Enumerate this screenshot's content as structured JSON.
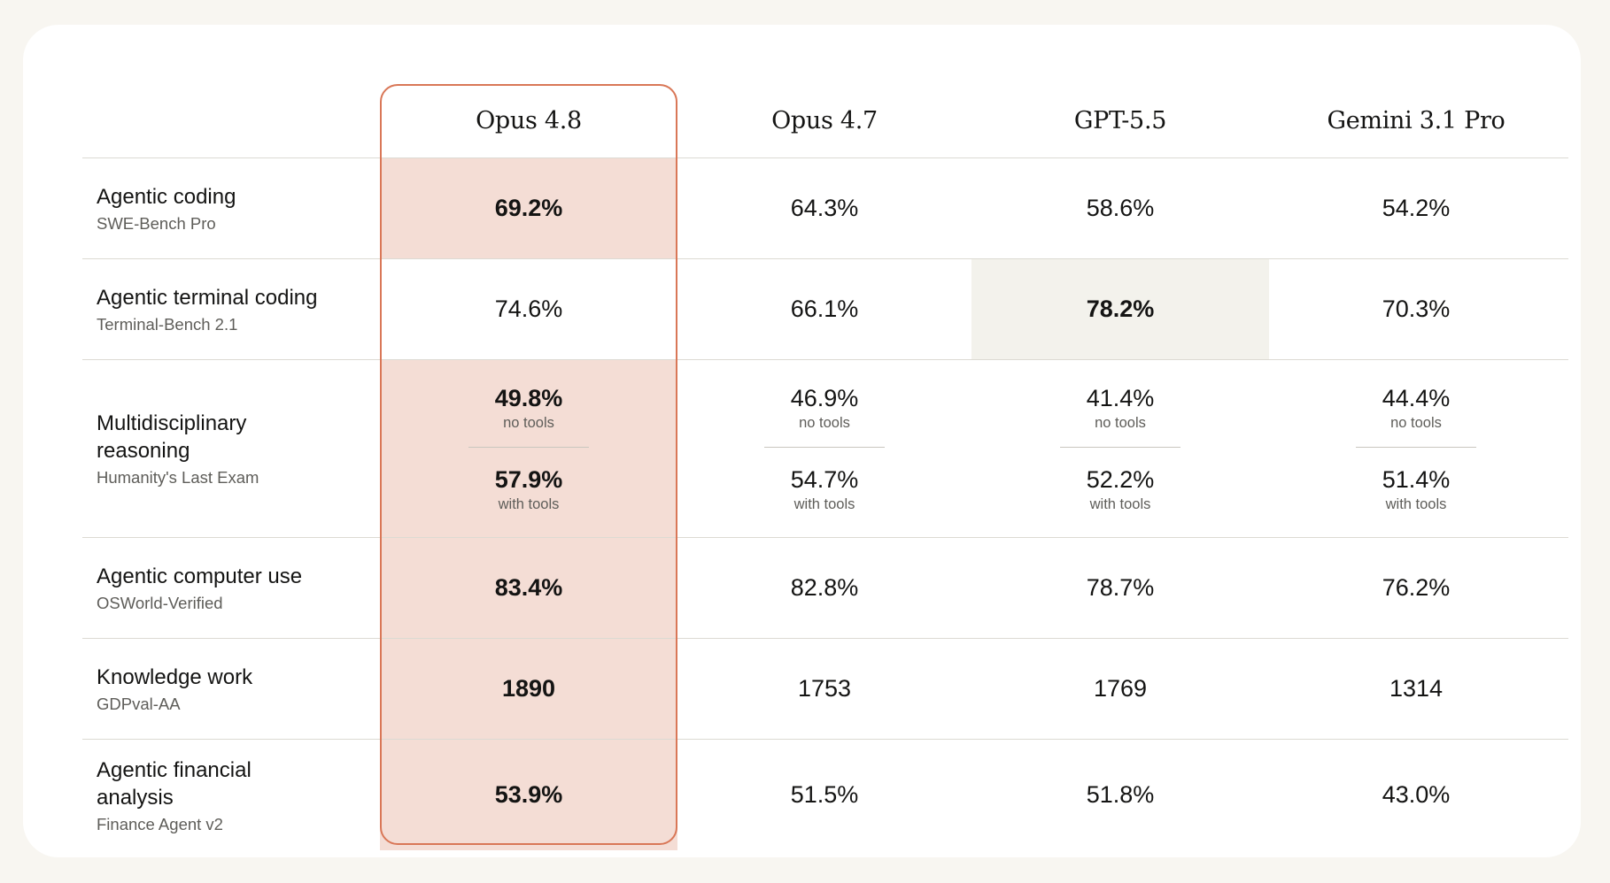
{
  "chart_data": {
    "type": "table",
    "columns": [
      "Opus 4.8",
      "Opus 4.7",
      "GPT-5.5",
      "Gemini 3.1 Pro"
    ],
    "highlight_column": "Opus 4.8",
    "rows": [
      {
        "title": "Agentic coding",
        "subtitle": "SWE-Bench Pro",
        "values": [
          "69.2%",
          "64.3%",
          "58.6%",
          "54.2%"
        ],
        "best_index": 0
      },
      {
        "title": "Agentic terminal coding",
        "subtitle": "Terminal-Bench 2.1",
        "values": [
          "74.6%",
          "66.1%",
          "78.2%",
          "70.3%"
        ],
        "best_index": 2
      },
      {
        "title": "Multidisciplinary reasoning",
        "subtitle": "Humanity's Last Exam",
        "split": true,
        "values_a": [
          "49.8%",
          "46.9%",
          "41.4%",
          "44.4%"
        ],
        "note_a": "no tools",
        "values_b": [
          "57.9%",
          "54.7%",
          "52.2%",
          "51.4%"
        ],
        "note_b": "with tools",
        "best_index": 0
      },
      {
        "title": "Agentic computer use",
        "subtitle": "OSWorld-Verified",
        "values": [
          "83.4%",
          "82.8%",
          "78.7%",
          "76.2%"
        ],
        "best_index": 0
      },
      {
        "title": "Knowledge work",
        "subtitle": "GDPval-AA",
        "values": [
          "1890",
          "1753",
          "1769",
          "1314"
        ],
        "best_index": 0
      },
      {
        "title": "Agentic financial analysis",
        "subtitle": "Finance Agent v2",
        "values": [
          "53.9%",
          "51.5%",
          "51.8%",
          "43.0%"
        ],
        "best_index": 0
      }
    ]
  },
  "colors": {
    "highlight_outline": "#d97757",
    "highlight_fill": "#f4ddd5",
    "best_other_fill": "#f3f2ec",
    "divider": "#dcdad3",
    "card_background": "#ffffff",
    "page_background": "#f8f6f1"
  }
}
